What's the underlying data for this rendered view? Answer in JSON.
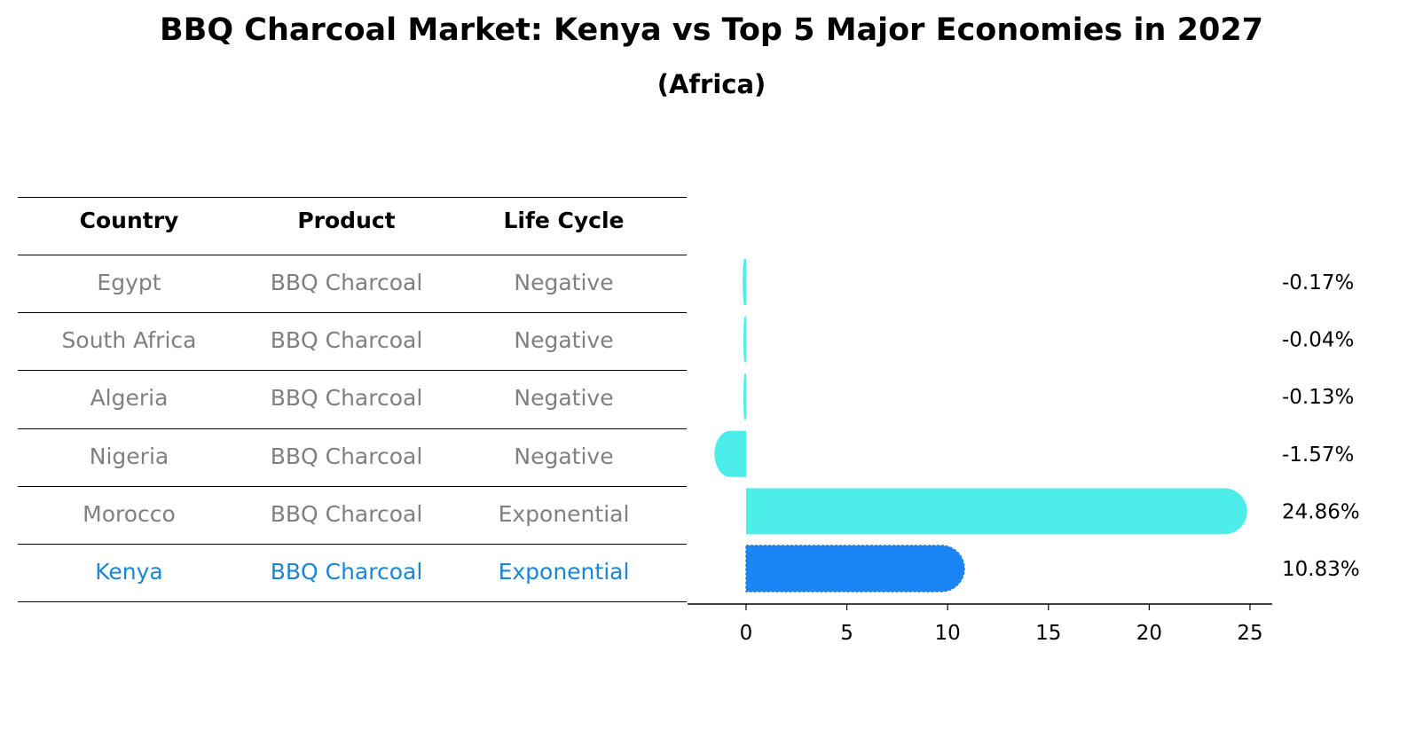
{
  "chart_data": {
    "type": "bar",
    "orientation": "horizontal",
    "title": "BBQ Charcoal Market: Kenya vs Top 5 Major Economies in 2027",
    "subtitle": "(Africa)",
    "table": {
      "headers": [
        "Country",
        "Product",
        "Life Cycle"
      ],
      "rows": [
        {
          "country": "Egypt",
          "product": "BBQ Charcoal",
          "life_cycle": "Negative"
        },
        {
          "country": "South Africa",
          "product": "BBQ Charcoal",
          "life_cycle": "Negative"
        },
        {
          "country": "Algeria",
          "product": "BBQ Charcoal",
          "life_cycle": "Negative"
        },
        {
          "country": "Nigeria",
          "product": "BBQ Charcoal",
          "life_cycle": "Negative"
        },
        {
          "country": "Morocco",
          "product": "BBQ Charcoal",
          "life_cycle": "Exponential"
        },
        {
          "country": "Kenya",
          "product": "BBQ Charcoal",
          "life_cycle": "Exponential"
        }
      ],
      "highlight_row": 5
    },
    "categories": [
      "Egypt",
      "South Africa",
      "Algeria",
      "Nigeria",
      "Morocco",
      "Kenya"
    ],
    "values": [
      -0.17,
      -0.04,
      -0.13,
      -1.57,
      24.86,
      10.83
    ],
    "value_labels": [
      "-0.17%",
      "-0.04%",
      "-0.13%",
      "-1.57%",
      "24.86%",
      "10.83%"
    ],
    "xlim": [
      -2.9,
      26.1
    ],
    "xticks": [
      0,
      5,
      10,
      15,
      20,
      25
    ],
    "xtick_labels": [
      "0",
      "5",
      "10",
      "15",
      "20",
      "25"
    ],
    "colors": {
      "default": "#4dedea",
      "highlight": "#1a86f5",
      "highlight_text": "#1a86d6",
      "muted_text": "#808080"
    }
  }
}
